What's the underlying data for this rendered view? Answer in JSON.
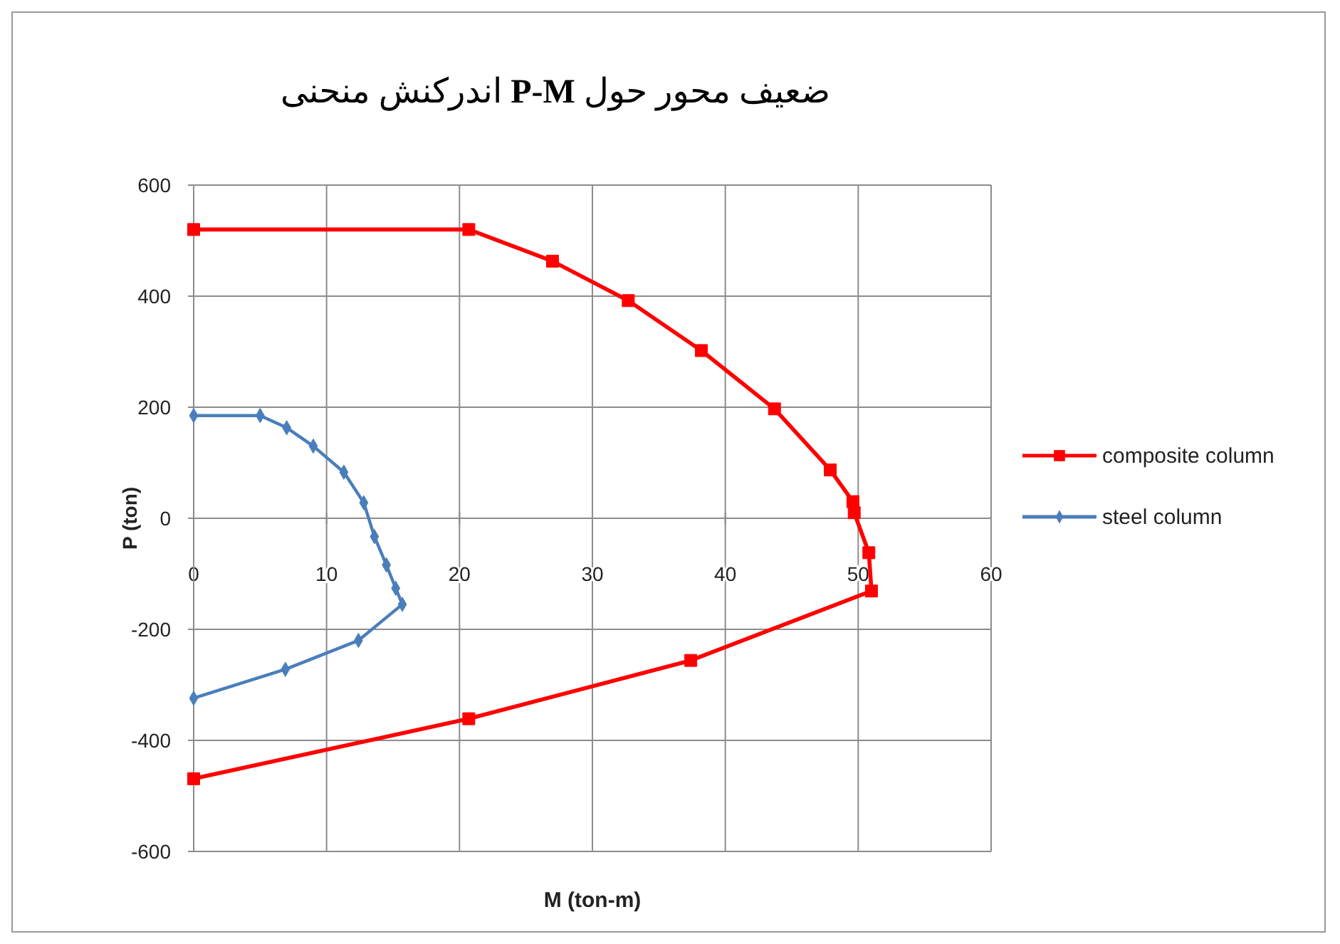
{
  "chart_data": {
    "type": "line",
    "title": "منحنی اندرکنش P-M حول محور ضعیف",
    "xlabel": "M (ton-m)",
    "ylabel": "P (ton)",
    "xlim": [
      0,
      60
    ],
    "ylim": [
      -600,
      600
    ],
    "xticks": [
      0,
      10,
      20,
      30,
      40,
      50,
      60
    ],
    "yticks": [
      -600,
      -400,
      -200,
      0,
      200,
      400,
      600
    ],
    "grid": true,
    "legend": "right",
    "series": [
      {
        "name": "composite column",
        "color": "#ff0000",
        "marker": "square",
        "x": [
          0,
          20.7,
          27,
          32.7,
          38.2,
          43.7,
          47.9,
          49.6,
          49.7,
          50.8,
          51,
          37.4,
          20.7,
          0
        ],
        "values": [
          520,
          520,
          463,
          392,
          302,
          197,
          87,
          30,
          10,
          -62,
          -131,
          -256,
          -361,
          -469
        ]
      },
      {
        "name": "steel column",
        "color": "#4a7ebb",
        "marker": "diamond",
        "x": [
          0,
          5,
          7,
          9,
          11.3,
          12.8,
          13.6,
          14.5,
          15.2,
          15.7,
          12.4,
          6.9,
          0
        ],
        "values": [
          185,
          185,
          163,
          130,
          83,
          28,
          -33,
          -84,
          -126,
          -155,
          -220,
          -272,
          -324
        ]
      }
    ]
  }
}
